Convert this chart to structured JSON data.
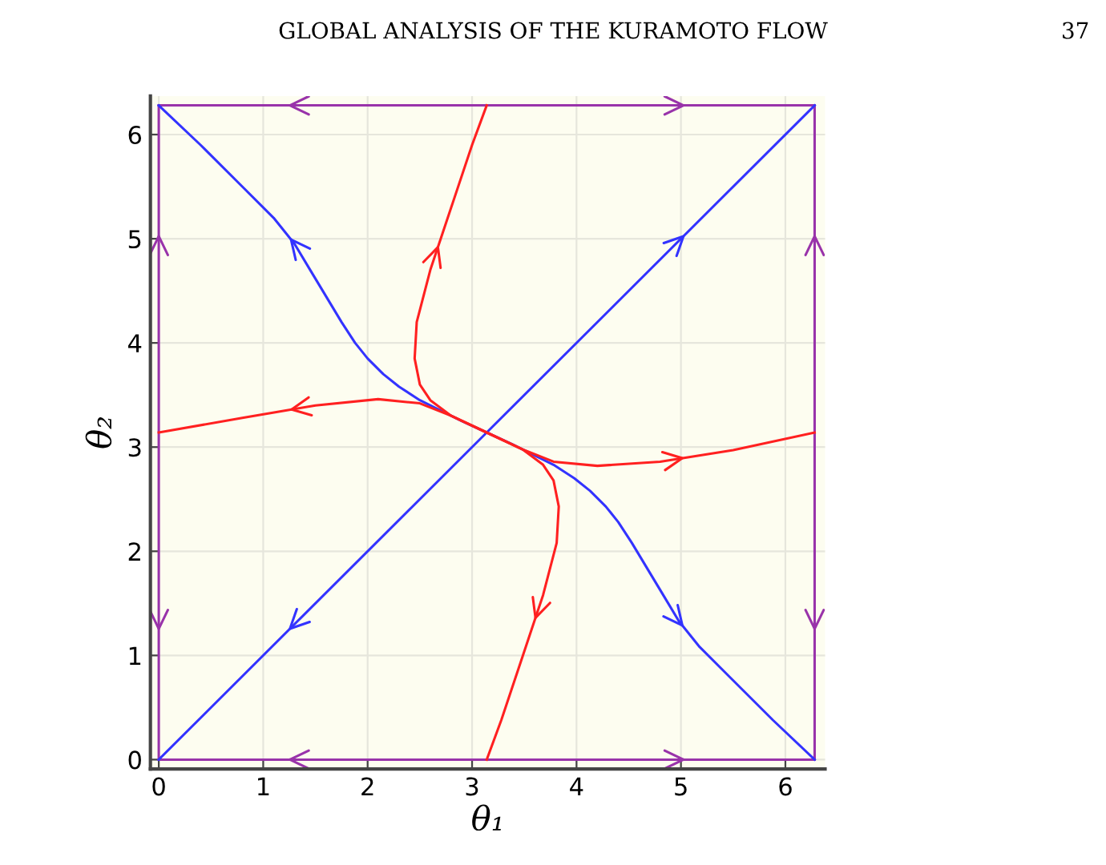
{
  "chart_data": {
    "type": "line",
    "annotations": [
      "GLOBAL ANALYSIS OF THE KURAMOTO FLOW",
      "37"
    ],
    "xlabel": "θ₁",
    "ylabel": "θ₂",
    "xlim": [
      -0.08,
      6.38
    ],
    "ylim": [
      -0.09,
      6.37
    ],
    "xticks": [
      0,
      1,
      2,
      3,
      4,
      5,
      6
    ],
    "yticks": [
      0,
      1,
      2,
      3,
      4,
      5,
      6
    ],
    "grid": true,
    "legend": false,
    "marker": "none",
    "line_style": "solid",
    "series": [
      {
        "color": "#9933aa",
        "x": [
          0,
          3.14,
          6.28
        ],
        "values": [
          6.28,
          6.28,
          6.28
        ]
      },
      {
        "color": "#9933aa",
        "x": [
          0,
          0,
          0
        ],
        "values": [
          0,
          3.14,
          6.28
        ]
      },
      {
        "color": "#9933aa",
        "x": [
          6.28,
          6.28,
          6.28
        ],
        "values": [
          0,
          3.14,
          6.28
        ]
      },
      {
        "color": "#9933aa",
        "x": [
          0,
          3.14,
          6.28
        ],
        "values": [
          0,
          0,
          0
        ]
      },
      {
        "color": "#3333ff",
        "x": [
          0,
          3.14,
          6.28
        ],
        "values": [
          0,
          3.14,
          6.28
        ]
      },
      {
        "color": "#3333ff",
        "x": [
          0,
          0.4,
          0.8,
          1.1,
          1.3,
          1.45,
          1.6,
          1.75,
          1.88,
          2.0,
          2.15,
          2.3,
          2.5,
          2.7,
          2.9,
          3.14,
          3.38,
          3.58,
          3.78,
          3.98,
          4.13,
          4.28,
          4.4,
          4.53,
          4.68,
          4.83,
          4.98,
          5.18,
          5.48,
          5.88,
          6.28
        ],
        "values": [
          6.28,
          5.9,
          5.5,
          5.2,
          4.95,
          4.7,
          4.45,
          4.2,
          4.0,
          3.85,
          3.7,
          3.58,
          3.45,
          3.35,
          3.25,
          3.14,
          3.03,
          2.93,
          2.83,
          2.7,
          2.58,
          2.43,
          2.28,
          2.08,
          1.83,
          1.58,
          1.33,
          1.08,
          0.78,
          0.38,
          0
        ]
      },
      {
        "color": "#ff2020",
        "x": [
          3.14,
          3.28,
          3.48,
          3.68,
          3.81,
          3.83,
          3.78,
          3.68,
          3.48,
          3.14,
          2.8,
          2.6,
          2.5,
          2.45,
          2.47,
          2.6,
          2.8,
          3.0,
          3.14
        ],
        "values": [
          0,
          0.38,
          0.98,
          1.58,
          2.08,
          2.43,
          2.68,
          2.83,
          2.98,
          3.14,
          3.3,
          3.45,
          3.6,
          3.85,
          4.2,
          4.7,
          5.3,
          5.9,
          6.28
        ]
      },
      {
        "color": "#ff2020",
        "x": [
          0,
          0.8,
          1.5,
          2.1,
          2.5,
          2.8,
          3.14,
          3.48,
          3.78,
          4.2,
          4.8,
          5.5,
          6.28
        ],
        "values": [
          3.14,
          3.28,
          3.4,
          3.46,
          3.42,
          3.3,
          3.14,
          2.98,
          2.86,
          2.82,
          2.86,
          2.97,
          3.14
        ]
      }
    ]
  }
}
